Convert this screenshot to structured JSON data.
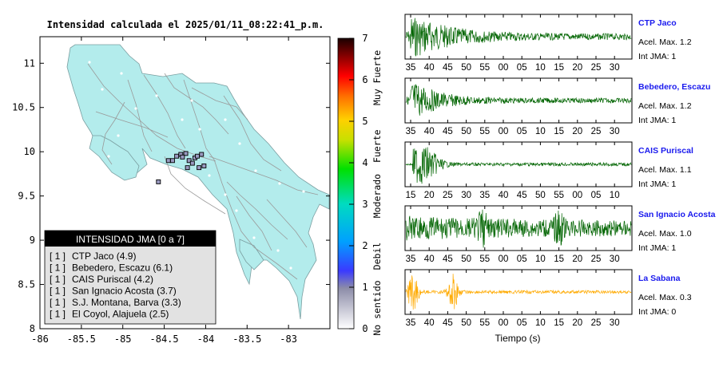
{
  "map": {
    "title": "Intensidad calculada el 2025/01/11_08:22:41_p.m.",
    "x_ticks": [
      "-86",
      "-85.5",
      "-85",
      "-84.5",
      "-84",
      "-83.5",
      "-83"
    ],
    "y_ticks": [
      "11",
      "10.5",
      "10",
      "9.5",
      "9",
      "8.5",
      "8"
    ],
    "lon_range": [
      -86,
      -82.5
    ],
    "lat_range": [
      8,
      11.3
    ],
    "legend": {
      "title": "INTENSIDAD JMA [0 a 7]",
      "items": [
        {
          "tag": "[ 1 ]",
          "label": "CTP Jaco (4.9)"
        },
        {
          "tag": "[ 1 ]",
          "label": "Bebedero, Escazu (6.1)"
        },
        {
          "tag": "[ 1 ]",
          "label": "CAIS Puriscal (4.2)"
        },
        {
          "tag": "[ 1 ]",
          "label": "San Ignacio Acosta (3.7)"
        },
        {
          "tag": "[ 1 ]",
          "label": "S.J. Montana, Barva (3.3)"
        },
        {
          "tag": "[ 1 ]",
          "label": "El Coyol, Alajuela (2.5)"
        }
      ]
    },
    "colors": {
      "land": "#b3ecec",
      "roads": "#9a9a9a",
      "towns": "#ffffff"
    }
  },
  "colorbar": {
    "ticks": [
      "0",
      "1",
      "2",
      "3",
      "4",
      "5",
      "6",
      "7"
    ],
    "category_labels": [
      "No sentido",
      "Debil",
      "Moderado",
      "Fuerte",
      "Muy Fuerte"
    ]
  },
  "waveforms": {
    "xlabel": "Tiempo (s)",
    "panels": [
      {
        "name": "CTP Jaco",
        "acel": "Acel. Max. 1.2",
        "int": "Int JMA: 1",
        "color": "#006400",
        "ticks": [
          "35",
          "40",
          "45",
          "50",
          "55",
          "00",
          "05",
          "10",
          "15",
          "20",
          "25",
          "30"
        ]
      },
      {
        "name": "Bebedero, Escazu",
        "acel": "Acel. Max. 1.2",
        "int": "Int JMA: 1",
        "color": "#006400",
        "ticks": [
          "35",
          "40",
          "45",
          "50",
          "55",
          "00",
          "05",
          "10",
          "15",
          "20",
          "25",
          "30"
        ]
      },
      {
        "name": "CAIS Puriscal",
        "acel": "Acel. Max. 1.1",
        "int": "Int JMA: 1",
        "color": "#006400",
        "ticks": [
          "15",
          "20",
          "25",
          "30",
          "35",
          "40",
          "45",
          "50",
          "55",
          "00",
          "05",
          "10"
        ]
      },
      {
        "name": "San Ignacio Acosta",
        "acel": "Acel. Max. 1.0",
        "int": "Int JMA: 1",
        "color": "#006400",
        "ticks": [
          "35",
          "40",
          "45",
          "50",
          "55",
          "00",
          "05",
          "10",
          "15",
          "20",
          "25",
          "30"
        ]
      },
      {
        "name": "La Sabana",
        "acel": "Acel. Max. 0.3",
        "int": "Int JMA: 0",
        "color": "#ffaa00",
        "ticks": [
          "35",
          "40",
          "45",
          "50",
          "55",
          "00",
          "05",
          "10",
          "15",
          "20",
          "25",
          "30"
        ]
      }
    ]
  },
  "chart_data": [
    {
      "type": "scatter",
      "title": "Intensidad calculada el 2025/01/11_08:22:41_p.m.",
      "xlabel": "",
      "ylabel": "",
      "xlim": [
        -86,
        -82.5
      ],
      "ylim": [
        8,
        11.3
      ],
      "series": [
        {
          "points": [
            [
              -84.35,
              9.95
            ],
            [
              -84.3,
              9.97
            ],
            [
              -84.24,
              9.98
            ],
            [
              -84.13,
              9.93
            ],
            [
              -84.1,
              9.95
            ],
            [
              -84.2,
              9.9
            ],
            [
              -84.16,
              9.87
            ],
            [
              -84.08,
              9.82
            ],
            [
              -84.02,
              9.84
            ],
            [
              -84.45,
              9.9
            ],
            [
              -84.4,
              9.9
            ],
            [
              -84.22,
              9.82
            ],
            [
              -84.57,
              9.66
            ],
            [
              -84.28,
              9.94
            ],
            [
              -84.05,
              9.97
            ]
          ]
        }
      ]
    },
    {
      "type": "heatmap",
      "title": "",
      "ylim": [
        0,
        7
      ],
      "ticks": [
        0,
        1,
        2,
        3,
        4,
        5,
        6,
        7
      ],
      "labels": [
        "No sentido",
        "Debil",
        "Moderado",
        "Fuerte",
        "Muy Fuerte"
      ]
    },
    {
      "type": "line",
      "xlabel": "Tiempo (s)",
      "series": [
        {
          "name": "CTP Jaco",
          "peak_acceleration": 1.2,
          "jma_intensity": 1
        },
        {
          "name": "Bebedero, Escazu",
          "peak_acceleration": 1.2,
          "jma_intensity": 1
        },
        {
          "name": "CAIS Puriscal",
          "peak_acceleration": 1.1,
          "jma_intensity": 1
        },
        {
          "name": "San Ignacio Acosta",
          "peak_acceleration": 1.0,
          "jma_intensity": 1
        },
        {
          "name": "La Sabana",
          "peak_acceleration": 0.3,
          "jma_intensity": 0
        }
      ]
    }
  ]
}
